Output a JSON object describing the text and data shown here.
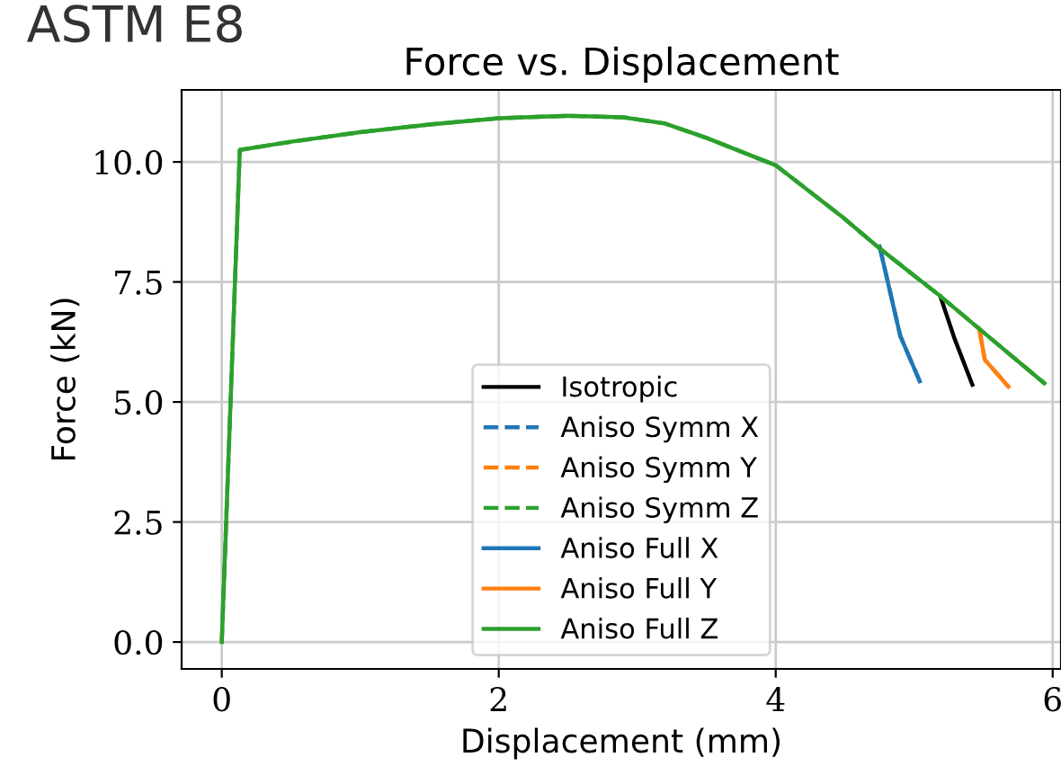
{
  "chart_data": {
    "type": "line",
    "title": "Force vs. Displacement",
    "xlabel": "Displacement (mm)",
    "ylabel": "Force (kN)",
    "annotations": [
      "ASTM E8"
    ],
    "xlim": [
      -0.29,
      6.06
    ],
    "ylim": [
      -0.56,
      11.5
    ],
    "xticks": [
      0,
      2,
      4,
      6
    ],
    "yticks": [
      {
        "value": 0,
        "label": "0.0"
      },
      2.5,
      {
        "value": 5,
        "label": "5.0"
      },
      7.5,
      {
        "value": 10,
        "label": "10.0"
      }
    ],
    "grid": true,
    "legend": "bottom",
    "marker": "none",
    "series": [
      {
        "name": "Isotropic",
        "color": "#000000",
        "line_style": "solid",
        "x": [
          5.19,
          5.29,
          5.42
        ],
        "values": [
          7.19,
          6.33,
          5.36
        ]
      },
      {
        "name": "Aniso Symm X",
        "color": "#1f77b4",
        "line_style": "dashed",
        "x": [
          4.75,
          4.9,
          5.04
        ],
        "values": [
          8.24,
          6.37,
          5.43
        ]
      },
      {
        "name": "Aniso Symm Y",
        "color": "#ff7f0e",
        "line_style": "dashed",
        "x": [
          5.47,
          5.51,
          5.68
        ],
        "values": [
          6.52,
          5.88,
          5.32
        ]
      },
      {
        "name": "Aniso Symm Z",
        "color": "#2ca02c",
        "line_style": "dashed",
        "x": [
          0,
          0.13,
          0.5,
          1.0,
          1.5,
          2.0,
          2.5,
          2.9,
          3.2,
          3.5,
          4.0,
          4.47,
          4.75,
          5.19,
          5.5,
          5.94
        ],
        "values": [
          0,
          10.25,
          10.42,
          10.62,
          10.78,
          10.91,
          10.96,
          10.93,
          10.8,
          10.5,
          9.93,
          8.88,
          8.2,
          7.2,
          6.45,
          5.39
        ]
      },
      {
        "name": "Aniso Full X",
        "color": "#1f77b4",
        "line_style": "solid",
        "x": [
          4.75,
          4.9,
          5.04
        ],
        "values": [
          8.24,
          6.37,
          5.43
        ]
      },
      {
        "name": "Aniso Full Y",
        "color": "#ff7f0e",
        "line_style": "solid",
        "x": [
          5.47,
          5.51,
          5.68
        ],
        "values": [
          6.52,
          5.88,
          5.32
        ]
      },
      {
        "name": "Aniso Full Z",
        "color": "#2ca02c",
        "line_style": "solid",
        "x": [
          0,
          0.13,
          0.5,
          1.0,
          1.5,
          2.0,
          2.5,
          2.9,
          3.2,
          3.5,
          4.0,
          4.47,
          4.75,
          5.19,
          5.5,
          5.94
        ],
        "values": [
          0,
          10.25,
          10.42,
          10.62,
          10.78,
          10.91,
          10.96,
          10.93,
          10.8,
          10.5,
          9.93,
          8.88,
          8.2,
          7.2,
          6.45,
          5.39
        ]
      }
    ]
  }
}
